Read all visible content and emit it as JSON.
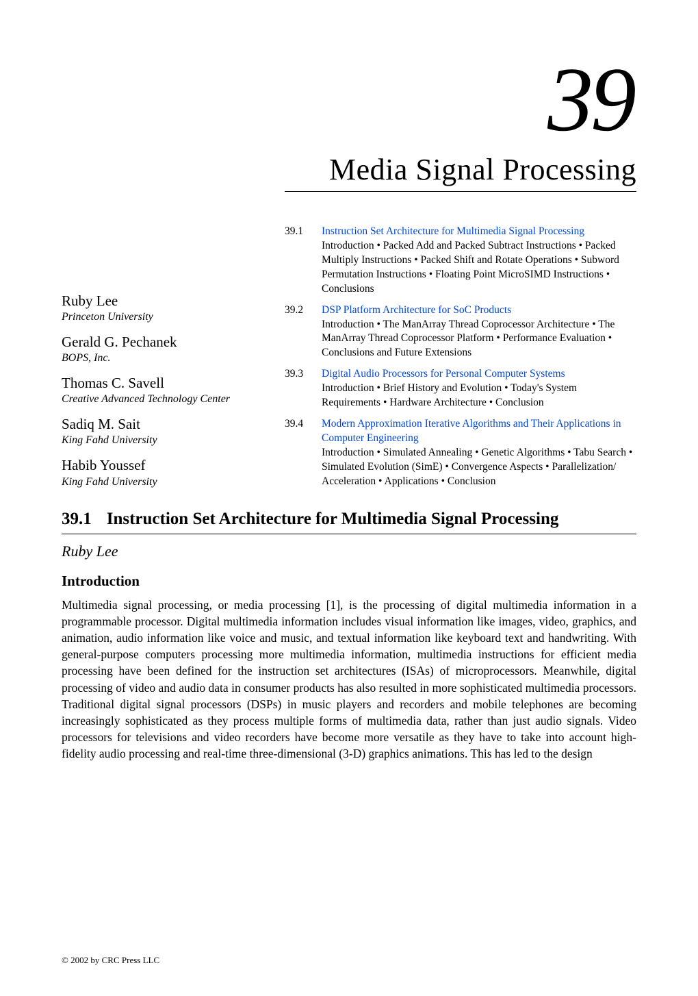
{
  "chapter": {
    "number": "39",
    "title": "Media Signal Processing"
  },
  "authors": [
    {
      "name": "Ruby Lee",
      "affiliation": "Princeton University"
    },
    {
      "name": "Gerald G. Pechanek",
      "affiliation": "BOPS, Inc."
    },
    {
      "name": "Thomas C. Savell",
      "affiliation": "Creative Advanced Technology Center"
    },
    {
      "name": "Sadiq M. Sait",
      "affiliation": "King Fahd University"
    },
    {
      "name": "Habib Youssef",
      "affiliation": "King Fahd University"
    }
  ],
  "toc": [
    {
      "num": "39.1",
      "title": "Instruction Set Architecture for Multimedia Signal Processing",
      "sub": "Introduction • Packed Add and Packed Subtract Instructions • Packed Multiply Instructions • Packed Shift and Rotate Operations • Subword Permutation Instructions • Floating Point MicroSIMD Instructions • Conclusions"
    },
    {
      "num": "39.2",
      "title": "DSP Platform Architecture for SoC Products",
      "sub": "Introduction • The ManArray Thread Coprocessor Architecture • The ManArray Thread Coprocessor Platform • Performance Evaluation • Conclusions and Future Extensions"
    },
    {
      "num": "39.3",
      "title": "Digital Audio Processors for Personal Computer Systems",
      "sub": "Introduction • Brief History and Evolution • Today's System Requirements • Hardware Architecture • Conclusion"
    },
    {
      "num": "39.4",
      "title": "Modern Approximation Iterative Algorithms and Their Applications in Computer Engineering",
      "sub": "Introduction • Simulated Annealing • Genetic Algorithms • Tabu Search • Simulated Evolution (SimE) • Convergence Aspects •  Parallelization/ Acceleration • Applications • Conclusion"
    }
  ],
  "section": {
    "number": "39.1",
    "title": "Instruction Set Architecture for Multimedia Signal Processing",
    "author": "Ruby Lee",
    "subheading": "Introduction",
    "body": "Multimedia signal processing, or media processing [1], is the processing of digital multimedia information in a programmable processor. Digital multimedia information includes visual information like images, video, graphics, and animation, audio information like voice and music, and textual information like keyboard text and handwriting. With general-purpose computers processing more multimedia information, multimedia instructions for efficient media processing have been defined for the instruction set architectures (ISAs) of microprocessors. Meanwhile, digital processing of video and audio data in consumer products has also resulted in more sophisticated multimedia processors. Traditional digital signal processors (DSPs) in music players and recorders and mobile telephones are becoming increasingly sophisticated as they process multiple forms of multimedia data, rather than just audio signals. Video processors for televisions and video recorders have become more versatile as they have to take into account high-fidelity audio processing and real-time three-dimensional (3-D) graphics animations. This has led to the design"
  },
  "footer": "© 2002 by CRC Press LLC",
  "colors": {
    "link": "#0046d5",
    "text": "#000000",
    "background": "#ffffff"
  },
  "typography": {
    "chapter_number_fontsize": 134,
    "chapter_title_fontsize": 44,
    "body_fontsize": 17.5,
    "toc_fontsize": 15.5,
    "author_name_fontsize": 21,
    "section_heading_fontsize": 25
  }
}
